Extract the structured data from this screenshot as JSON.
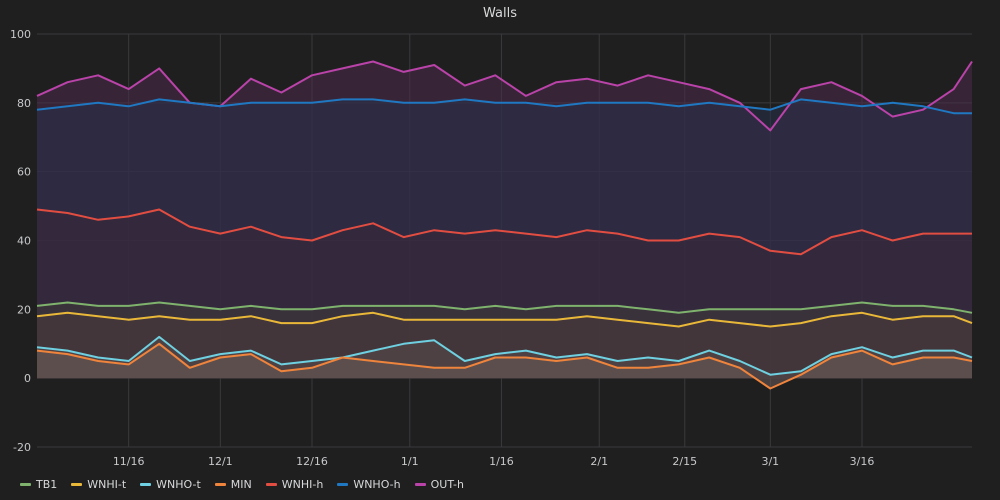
{
  "chart_data": {
    "type": "line",
    "title": "Walls",
    "xlabel": "",
    "ylabel": "",
    "ylim": [
      -20,
      100
    ],
    "yticks": [
      -20,
      0,
      20,
      40,
      60,
      80,
      100
    ],
    "xlim_days": [
      0,
      153
    ],
    "xticks": [
      {
        "day": 15,
        "label": "11/16"
      },
      {
        "day": 30,
        "label": "12/1"
      },
      {
        "day": 45,
        "label": "12/16"
      },
      {
        "day": 61,
        "label": "1/1"
      },
      {
        "day": 76,
        "label": "1/16"
      },
      {
        "day": 92,
        "label": "2/1"
      },
      {
        "day": 106,
        "label": "2/15"
      },
      {
        "day": 120,
        "label": "3/1"
      },
      {
        "day": 135,
        "label": "3/16"
      }
    ],
    "x_days": [
      0,
      5,
      10,
      15,
      20,
      25,
      30,
      35,
      40,
      45,
      50,
      55,
      60,
      65,
      70,
      75,
      80,
      85,
      90,
      95,
      100,
      105,
      110,
      115,
      120,
      125,
      130,
      135,
      140,
      145,
      150,
      153
    ],
    "series": [
      {
        "name": "OUT-h",
        "color": "#ba43a9",
        "fill": "#4a2a4a",
        "values": [
          82,
          86,
          88,
          84,
          90,
          80,
          79,
          87,
          83,
          88,
          90,
          92,
          89,
          91,
          85,
          88,
          82,
          86,
          87,
          85,
          88,
          86,
          84,
          80,
          72,
          84,
          86,
          82,
          76,
          78,
          84,
          92
        ]
      },
      {
        "name": "WNHO-h",
        "color": "#1f78c1",
        "fill": "#26304a",
        "values": [
          78,
          79,
          80,
          79,
          81,
          80,
          79,
          80,
          80,
          80,
          81,
          81,
          80,
          80,
          81,
          80,
          80,
          79,
          80,
          80,
          80,
          79,
          80,
          79,
          78,
          81,
          80,
          79,
          80,
          79,
          77,
          77
        ]
      },
      {
        "name": "WNHI-h",
        "color": "#e24d42",
        "fill": "#3a2838",
        "values": [
          49,
          48,
          46,
          47,
          49,
          44,
          42,
          44,
          41,
          40,
          43,
          45,
          41,
          43,
          42,
          43,
          42,
          41,
          43,
          42,
          40,
          40,
          42,
          41,
          37,
          36,
          41,
          43,
          40,
          42,
          42,
          42
        ]
      },
      {
        "name": "TB1",
        "color": "#7eb26d",
        "fill": "#3e3a3a",
        "values": [
          21,
          22,
          21,
          21,
          22,
          21,
          20,
          21,
          20,
          20,
          21,
          21,
          21,
          21,
          20,
          21,
          20,
          21,
          21,
          21,
          20,
          19,
          20,
          20,
          20,
          20,
          21,
          22,
          21,
          21,
          20,
          19
        ]
      },
      {
        "name": "WNHI-t",
        "color": "#eab839",
        "fill": "#4a3a3a",
        "values": [
          18,
          19,
          18,
          17,
          18,
          17,
          17,
          18,
          16,
          16,
          18,
          19,
          17,
          17,
          17,
          17,
          17,
          17,
          18,
          17,
          16,
          15,
          17,
          16,
          15,
          16,
          18,
          19,
          17,
          18,
          18,
          16
        ]
      },
      {
        "name": "WNHO-t",
        "color": "#6ed0e0",
        "fill": "#5a4a4a",
        "values": [
          9,
          8,
          6,
          5,
          12,
          5,
          7,
          8,
          4,
          5,
          6,
          8,
          10,
          11,
          5,
          7,
          8,
          6,
          7,
          5,
          6,
          5,
          8,
          5,
          1,
          2,
          7,
          9,
          6,
          8,
          8,
          6
        ]
      },
      {
        "name": "MIN",
        "color": "#ef843c",
        "fill": "#6a5a58",
        "values": [
          8,
          7,
          5,
          4,
          10,
          3,
          6,
          7,
          2,
          3,
          6,
          5,
          4,
          3,
          3,
          6,
          6,
          5,
          6,
          3,
          3,
          4,
          6,
          3,
          -3,
          1,
          6,
          8,
          4,
          6,
          6,
          5
        ]
      }
    ],
    "legend": [
      "TB1",
      "WNHI-t",
      "WNHO-t",
      "MIN",
      "WNHI-h",
      "WNHO-h",
      "OUT-h"
    ],
    "legend_position": "bottom-left",
    "grid": true
  }
}
